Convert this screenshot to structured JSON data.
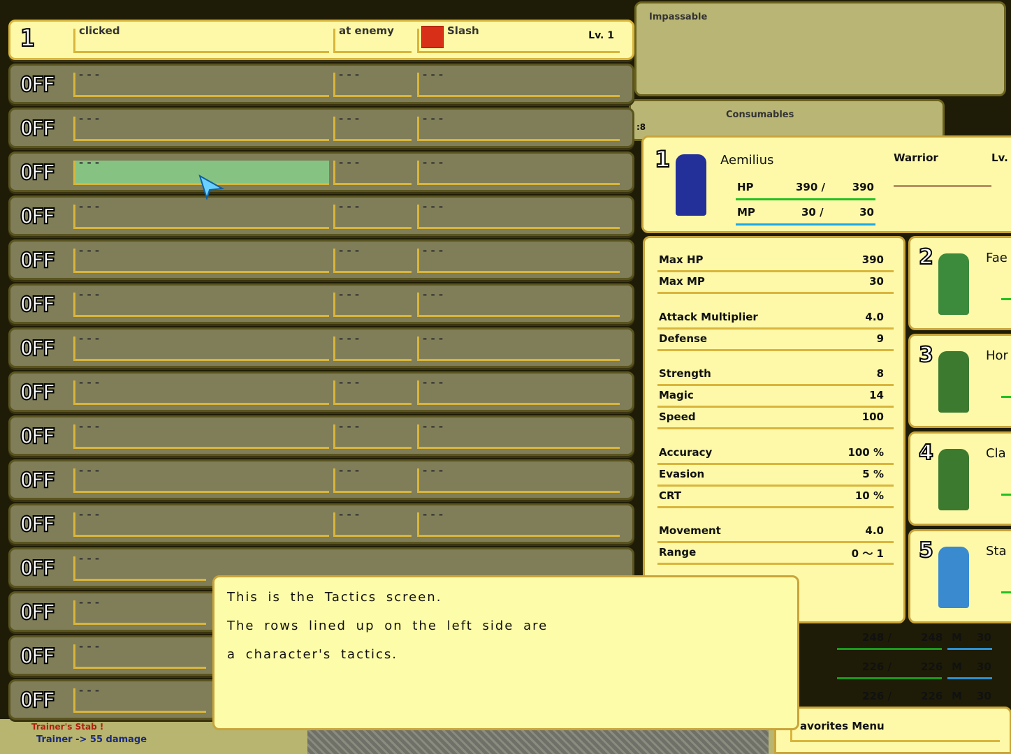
{
  "tactics": {
    "selected": {
      "index": "1",
      "condition": "clicked",
      "target": "at enemy",
      "skill": "Slash",
      "skill_icon": "sword-icon",
      "level": "Lv. 1"
    },
    "off_label": "OFF",
    "empty": "- - -",
    "off_count": 15,
    "highlight_row": 2
  },
  "panels": {
    "impassable": "Impassable",
    "consumables": "Consumables",
    "consumables_side": ":8"
  },
  "character": {
    "index": "1",
    "name": "Aemilius",
    "class": "Warrior",
    "level": "Lv.",
    "hp_label": "HP",
    "hp": "390 /",
    "hp_max": "390",
    "mp_label": "MP",
    "mp": "30 /",
    "mp_max": "30",
    "hp_color": "#22c022",
    "mp_color": "#1aa8e8"
  },
  "stats": [
    {
      "label": "Max HP",
      "value": "390"
    },
    {
      "label": "Max MP",
      "value": "30"
    },
    {
      "label": "Attack Multiplier",
      "value": "4.0"
    },
    {
      "label": "Defense",
      "value": "9"
    },
    {
      "label": "Strength",
      "value": "8"
    },
    {
      "label": "Magic",
      "value": "14"
    },
    {
      "label": "Speed",
      "value": "100"
    },
    {
      "label": "Accuracy",
      "value": "100  %"
    },
    {
      "label": "Evasion",
      "value": "5  %"
    },
    {
      "label": "CRT",
      "value": "10  %"
    },
    {
      "label": "Movement",
      "value": "4.0"
    },
    {
      "label": "Range",
      "value": "0 ～  1"
    }
  ],
  "party": [
    {
      "index": "2",
      "name": "Fae",
      "color": "#3c8a3c"
    },
    {
      "index": "3",
      "name": "Hor",
      "color": "#3c7a30"
    },
    {
      "index": "4",
      "name": "Cla",
      "color": "#3c7a30"
    },
    {
      "index": "5",
      "name": "Sta",
      "color": "#3a8ad0"
    }
  ],
  "party_hp": [
    {
      "hp": "248 /",
      "max": "248",
      "m": "M",
      "mp": "30"
    },
    {
      "hp": "226 /",
      "max": "226",
      "m": "M",
      "mp": "30"
    },
    {
      "hp": "226 /",
      "max": "226",
      "m": "M",
      "mp": "30"
    }
  ],
  "dialog": {
    "lines": [
      "This is the Tactics screen.",
      "The rows lined up on the left side are",
      "a character's tactics."
    ]
  },
  "favorites": "avorites Menu",
  "log": {
    "line1": "Trainer's Stab !",
    "line2": "Trainer -> 55 damage"
  }
}
